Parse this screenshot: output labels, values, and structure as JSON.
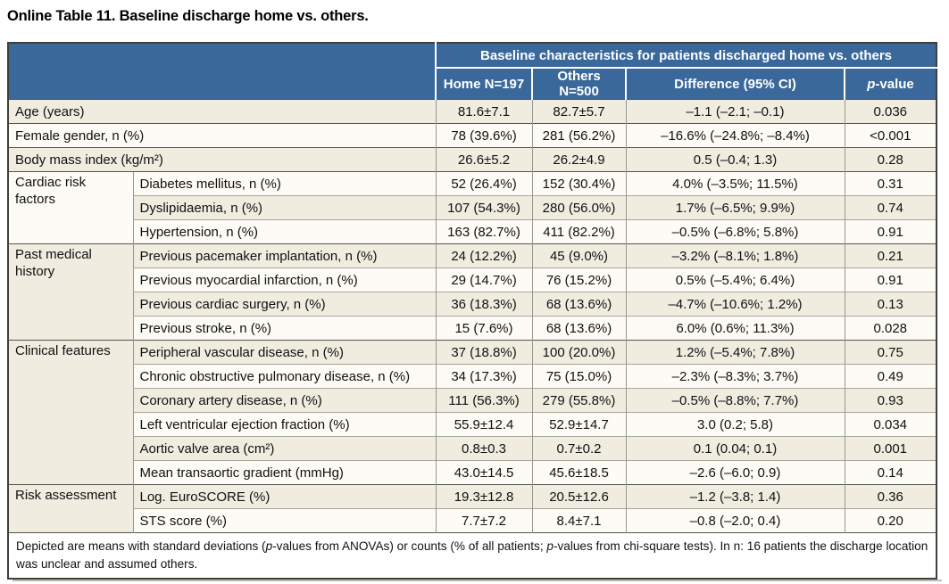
{
  "title": "Online Table 11. Baseline discharge home vs. others.",
  "colors": {
    "header_bg": "#3a689b",
    "header_text": "#ffffff",
    "row_beige": "#f0ecdf",
    "row_white": "#fcfbf6",
    "border_dark": "#403f39",
    "border_light": "#a6a59d"
  },
  "table": {
    "header": {
      "span_title": "Baseline characteristics for patients discharged home vs. others",
      "col_home": "Home N=197",
      "col_others": "Others N=500",
      "col_diff": "Difference (95% CI)",
      "col_p_italic": "p",
      "col_p_rest": "-value"
    },
    "groups": [
      {
        "label": "Cardiac risk factors"
      },
      {
        "label": "Past medical history"
      },
      {
        "label": "Clinical features"
      },
      {
        "label": "Risk assessment"
      }
    ],
    "rows": [
      {
        "label": "Age (years)",
        "home": "81.6±7.1",
        "others": "82.7±5.7",
        "diff": "–1.1 (–2.1; –0.1)",
        "p": "0.036"
      },
      {
        "label": "Female gender, n (%)",
        "home": "78 (39.6%)",
        "others": "281 (56.2%)",
        "diff": "–16.6% (–24.8%; –8.4%)",
        "p": "<0.001"
      },
      {
        "label": "Body mass index (kg/m²)",
        "home": "26.6±5.2",
        "others": "26.2±4.9",
        "diff": "0.5 (–0.4; 1.3)",
        "p": "0.28"
      },
      {
        "label": "Diabetes mellitus, n (%)",
        "home": "52 (26.4%)",
        "others": "152 (30.4%)",
        "diff": "4.0% (–3.5%; 11.5%)",
        "p": "0.31"
      },
      {
        "label": "Dyslipidaemia, n (%)",
        "home": "107 (54.3%)",
        "others": "280 (56.0%)",
        "diff": "1.7% (–6.5%; 9.9%)",
        "p": "0.74"
      },
      {
        "label": "Hypertension, n (%)",
        "home": "163 (82.7%)",
        "others": "411 (82.2%)",
        "diff": "–0.5% (–6.8%; 5.8%)",
        "p": "0.91"
      },
      {
        "label": "Previous pacemaker implantation, n (%)",
        "home": "24 (12.2%)",
        "others": "45 (9.0%)",
        "diff": "–3.2% (–8.1%; 1.8%)",
        "p": "0.21"
      },
      {
        "label": "Previous myocardial infarction, n (%)",
        "home": "29 (14.7%)",
        "others": "76 (15.2%)",
        "diff": "0.5% (–5.4%; 6.4%)",
        "p": "0.91"
      },
      {
        "label": "Previous cardiac surgery, n (%)",
        "home": "36 (18.3%)",
        "others": "68 (13.6%)",
        "diff": "–4.7% (–10.6%; 1.2%)",
        "p": "0.13"
      },
      {
        "label": "Previous stroke, n (%)",
        "home": "15 (7.6%)",
        "others": "68 (13.6%)",
        "diff": "6.0% (0.6%; 11.3%)",
        "p": "0.028"
      },
      {
        "label": "Peripheral vascular disease, n (%)",
        "home": "37 (18.8%)",
        "others": "100 (20.0%)",
        "diff": "1.2% (–5.4%; 7.8%)",
        "p": "0.75"
      },
      {
        "label": "Chronic obstructive pulmonary disease, n (%)",
        "home": "34 (17.3%)",
        "others": "75 (15.0%)",
        "diff": "–2.3% (–8.3%; 3.7%)",
        "p": "0.49"
      },
      {
        "label": "Coronary artery disease, n (%)",
        "home": "111 (56.3%)",
        "others": "279 (55.8%)",
        "diff": "–0.5% (–8.8%; 7.7%)",
        "p": "0.93"
      },
      {
        "label": "Left ventricular ejection fraction (%)",
        "home": "55.9±12.4",
        "others": "52.9±14.7",
        "diff": "3.0 (0.2; 5.8)",
        "p": "0.034"
      },
      {
        "label": "Aortic valve area (cm²)",
        "home": "0.8±0.3",
        "others": "0.7±0.2",
        "diff": "0.1 (0.04; 0.1)",
        "p": "0.001"
      },
      {
        "label": "Mean transaortic gradient (mmHg)",
        "home": "43.0±14.5",
        "others": "45.6±18.5",
        "diff": "–2.6 (–6.0; 0.9)",
        "p": "0.14"
      },
      {
        "label": "Log. EuroSCORE (%)",
        "home": "19.3±12.8",
        "others": "20.5±12.6",
        "diff": "–1.2 (–3.8; 1.4)",
        "p": "0.36"
      },
      {
        "label": "STS score (%)",
        "home": "7.7±7.2",
        "others": "8.4±7.1",
        "diff": "–0.8 (–2.0; 0.4)",
        "p": "0.20"
      }
    ],
    "footnote": {
      "part1": "Depicted are means with standard deviations (",
      "p1": "p",
      "part2": "-values from ANOVAs) or counts (% of all patients; ",
      "p2": "p",
      "part3": "-values from chi-square tests). In n: 16 patients the discharge location was unclear and assumed others."
    }
  }
}
